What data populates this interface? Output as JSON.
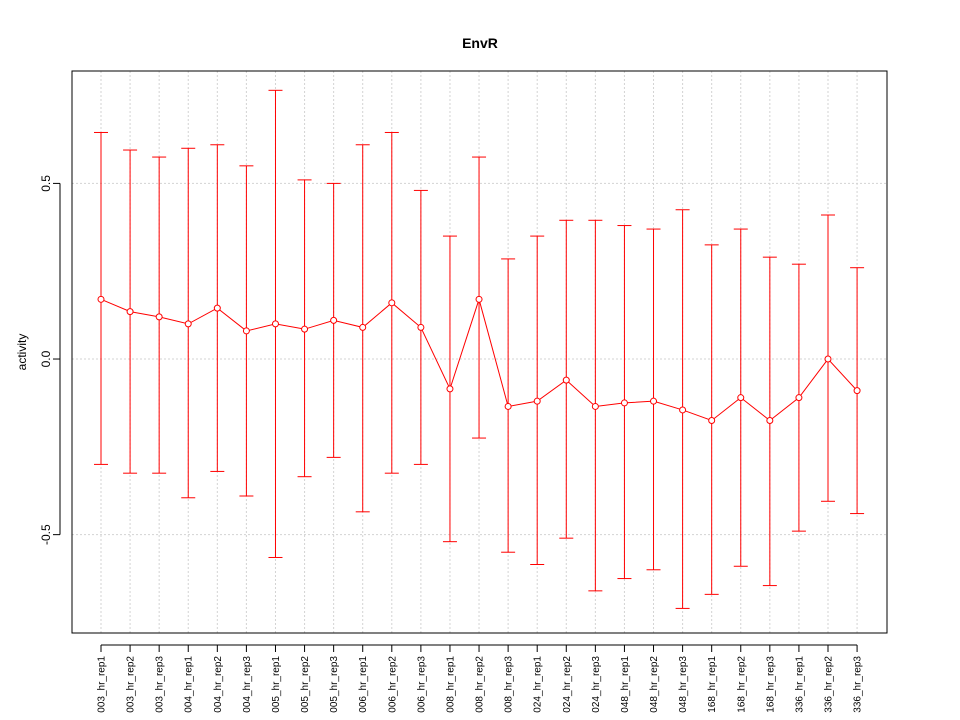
{
  "chart_data": {
    "type": "line",
    "title": "EnvR",
    "xlabel": "",
    "ylabel": "activity",
    "ylim": [
      -0.78,
      0.82
    ],
    "yticks": [
      -0.5,
      0.0,
      0.5
    ],
    "ytick_labels": [
      "-0.5",
      "0.0",
      "0.5"
    ],
    "grid": true,
    "legend": "none",
    "series_color": "#ff0000",
    "grid_color": "#d3d3d3",
    "categories": [
      "003_hr_rep1",
      "003_hr_rep2",
      "003_hr_rep3",
      "004_hr_rep1",
      "004_hr_rep2",
      "004_hr_rep3",
      "005_hr_rep1",
      "005_hr_rep2",
      "005_hr_rep3",
      "006_hr_rep1",
      "006_hr_rep2",
      "006_hr_rep3",
      "008_hr_rep1",
      "008_hr_rep2",
      "008_hr_rep3",
      "024_hr_rep1",
      "024_hr_rep2",
      "024_hr_rep3",
      "048_hr_rep1",
      "048_hr_rep2",
      "048_hr_rep3",
      "168_hr_rep1",
      "168_hr_rep2",
      "168_hr_rep3",
      "336_hr_rep1",
      "336_hr_rep2",
      "336_hr_rep3"
    ],
    "series": [
      {
        "values": [
          0.17,
          0.135,
          0.12,
          0.1,
          0.145,
          0.08,
          0.1,
          0.085,
          0.11,
          0.09,
          0.16,
          0.09,
          -0.085,
          0.17,
          -0.135,
          -0.12,
          -0.06,
          -0.135,
          -0.125,
          -0.12,
          -0.145,
          -0.175,
          -0.11,
          -0.175,
          -0.11,
          0.0,
          -0.09
        ],
        "upper": [
          0.645,
          0.595,
          0.575,
          0.6,
          0.61,
          0.55,
          0.765,
          0.51,
          0.5,
          0.61,
          0.645,
          0.48,
          0.35,
          0.575,
          0.285,
          0.35,
          0.395,
          0.395,
          0.38,
          0.37,
          0.425,
          0.325,
          0.37,
          0.29,
          0.27,
          0.41,
          0.26
        ],
        "lower": [
          -0.3,
          -0.325,
          -0.325,
          -0.395,
          -0.32,
          -0.39,
          -0.565,
          -0.335,
          -0.28,
          -0.435,
          -0.325,
          -0.3,
          -0.52,
          -0.225,
          -0.55,
          -0.585,
          -0.51,
          -0.66,
          -0.625,
          -0.6,
          -0.71,
          -0.67,
          -0.59,
          -0.645,
          -0.49,
          -0.405,
          -0.44
        ]
      }
    ]
  }
}
